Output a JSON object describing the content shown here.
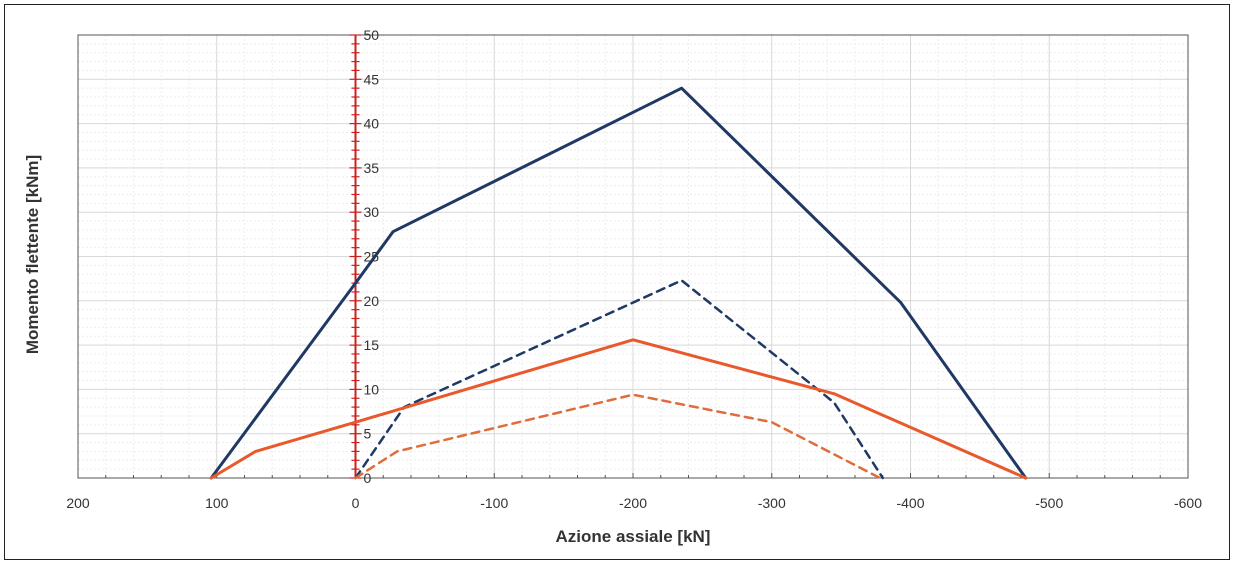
{
  "chart_data": {
    "type": "line",
    "title": "",
    "xlabel": "Azione assiale [kN]",
    "ylabel": "Momento flettente [kNm]",
    "x_reversed": true,
    "xlim": [
      200,
      -600
    ],
    "ylim": [
      0,
      50
    ],
    "x_ticks": [
      200,
      100,
      0,
      -100,
      -200,
      -300,
      -400,
      -500,
      -600
    ],
    "y_ticks": [
      0,
      5,
      10,
      15,
      20,
      25,
      30,
      35,
      40,
      45,
      50
    ],
    "y_tick_labels_shown": [
      0,
      5,
      10,
      15,
      20,
      25,
      30,
      35,
      40,
      45,
      50
    ],
    "grid": true,
    "legend": "none",
    "colors": {
      "navy": "#1f3864",
      "orange": "#e8592b",
      "orange_light": "#e06c3c",
      "y_axis": "#cc2020",
      "grid_major": "#d9d9d9",
      "grid_minor": "#eeeeee"
    },
    "series": [
      {
        "color": "#1f3864",
        "style": "solid",
        "points": [
          [
            104,
            0
          ],
          [
            0,
            22
          ],
          [
            -27,
            27.8
          ],
          [
            -235,
            44
          ],
          [
            -393,
            19.8
          ],
          [
            -483,
            0
          ]
        ]
      },
      {
        "color": "#1f3864",
        "style": "dashed",
        "points": [
          [
            0,
            0
          ],
          [
            -35,
            8
          ],
          [
            -235,
            22.3
          ],
          [
            -345,
            8.5
          ],
          [
            -380,
            0
          ]
        ]
      },
      {
        "color": "#e8592b",
        "style": "solid",
        "points": [
          [
            104,
            0
          ],
          [
            72,
            3
          ],
          [
            0,
            6.3
          ],
          [
            -200,
            15.6
          ],
          [
            -345,
            9.5
          ],
          [
            -483,
            0
          ]
        ]
      },
      {
        "color": "#e06c3c",
        "style": "dashed",
        "points": [
          [
            0,
            0
          ],
          [
            -30,
            3
          ],
          [
            -200,
            9.4
          ],
          [
            -300,
            6.3
          ],
          [
            -378,
            0
          ]
        ]
      }
    ]
  }
}
